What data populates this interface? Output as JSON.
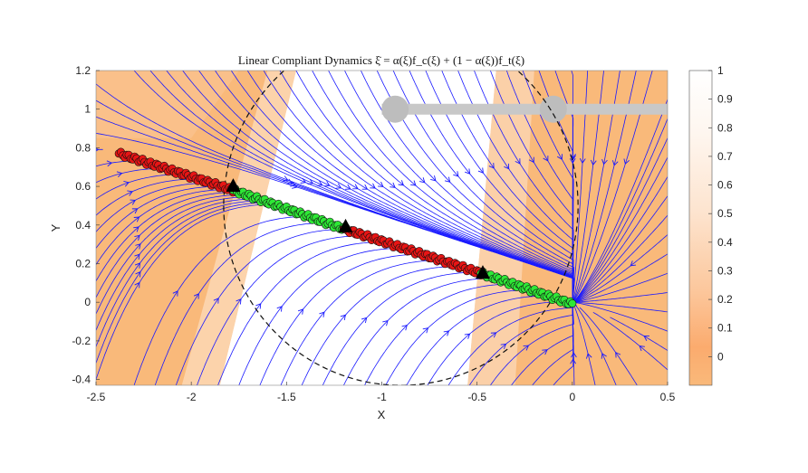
{
  "chart_data": {
    "type": "streamline-field",
    "title": "Linear Compliant Dynamics ξ̇ = α(ξ)f_c(ξ) + (1 − α(ξ))f_t(ξ)",
    "xlabel": "X",
    "ylabel": "Y",
    "xlim": [
      -2.5,
      0.5
    ],
    "ylim": [
      -0.43,
      1.2
    ],
    "xticks": [
      "-2.5",
      "-2",
      "-1.5",
      "-1",
      "-0.5",
      "0",
      "0.5"
    ],
    "yticks": [
      "-0.4",
      "-0.2",
      "0",
      "0.2",
      "0.4",
      "0.6",
      "0.8",
      "1",
      "1.2"
    ],
    "grid": false,
    "background_field": {
      "name": "alpha",
      "bands": [
        {
          "x_start_bottom": -2.05,
          "x_start_top": -1.6,
          "x_end_bottom": -1.85,
          "x_end_top": -1.45
        },
        {
          "x_start_bottom": -0.55,
          "x_start_top": -0.4,
          "x_end_bottom": -0.3,
          "x_end_top": -0.2
        }
      ]
    },
    "colorbar": {
      "ticks": [
        "0",
        "0.1",
        "0.2",
        "0.3",
        "0.4",
        "0.5",
        "0.6",
        "0.7",
        "0.8",
        "0.9",
        "1"
      ],
      "range": [
        -0.1,
        1.0
      ],
      "colors": [
        "#f9b97a",
        "#fdf5ee",
        "#ffffff"
      ]
    },
    "circle": {
      "center": [
        -0.9,
        0.5
      ],
      "radius": 0.93,
      "style": "dashed"
    },
    "obstacle_bar": {
      "x_start": -1.0,
      "x_end": 0.5,
      "y": 1.0,
      "color": "#c8c8c8"
    },
    "obstacle_joints": [
      [
        -0.93,
        1.0
      ],
      [
        -0.1,
        1.0
      ]
    ],
    "trajectory": [
      [
        -2.38,
        0.77
      ],
      [
        -1.78,
        0.58
      ],
      [
        -1.2,
        0.38
      ],
      [
        -0.48,
        0.15
      ],
      [
        0.0,
        -0.01
      ]
    ],
    "trajectory_segments": [
      {
        "from": [
          -2.38,
          0.77
        ],
        "to": [
          -1.78,
          0.58
        ],
        "color": "#e81515"
      },
      {
        "from": [
          -1.78,
          0.58
        ],
        "to": [
          -1.2,
          0.38
        ],
        "color": "#2ee836"
      },
      {
        "from": [
          -1.2,
          0.38
        ],
        "to": [
          -0.48,
          0.15
        ],
        "color": "#e81515"
      },
      {
        "from": [
          -0.48,
          0.15
        ],
        "to": [
          0.0,
          -0.01
        ],
        "color": "#2ee836"
      }
    ],
    "triangle_markers": [
      [
        -1.78,
        0.6
      ],
      [
        -1.19,
        0.39
      ],
      [
        -0.47,
        0.15
      ]
    ],
    "stream_color": "#1a1aff"
  }
}
